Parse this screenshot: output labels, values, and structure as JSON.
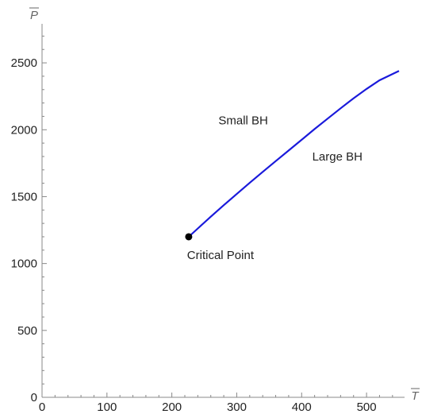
{
  "chart_data": {
    "type": "line",
    "xlabel": "T",
    "ylabel": "P",
    "xlim": [
      0,
      550
    ],
    "ylim": [
      0,
      2750
    ],
    "x_ticks": [
      0,
      100,
      200,
      300,
      400,
      500
    ],
    "y_ticks": [
      0,
      500,
      1000,
      1500,
      2000,
      2500
    ],
    "series": [
      {
        "color": "#1a1adb",
        "points": [
          [
            226,
            1200
          ],
          [
            240,
            1262
          ],
          [
            260,
            1350
          ],
          [
            280,
            1436
          ],
          [
            300,
            1520
          ],
          [
            320,
            1603
          ],
          [
            340,
            1685
          ],
          [
            360,
            1765
          ],
          [
            380,
            1845
          ],
          [
            400,
            1925
          ],
          [
            420,
            2005
          ],
          [
            440,
            2083
          ],
          [
            460,
            2160
          ],
          [
            480,
            2235
          ],
          [
            500,
            2305
          ],
          [
            520,
            2370
          ],
          [
            550,
            2440
          ]
        ]
      }
    ],
    "critical_point": {
      "x": 226,
      "y": 1200,
      "label": "Critical Point",
      "color": "#000000"
    },
    "annotations": [
      {
        "text": "Small BH",
        "x": 310,
        "y": 2070
      },
      {
        "text": "Large BH",
        "x": 455,
        "y": 1800
      }
    ],
    "grid": false,
    "legend": "none"
  }
}
